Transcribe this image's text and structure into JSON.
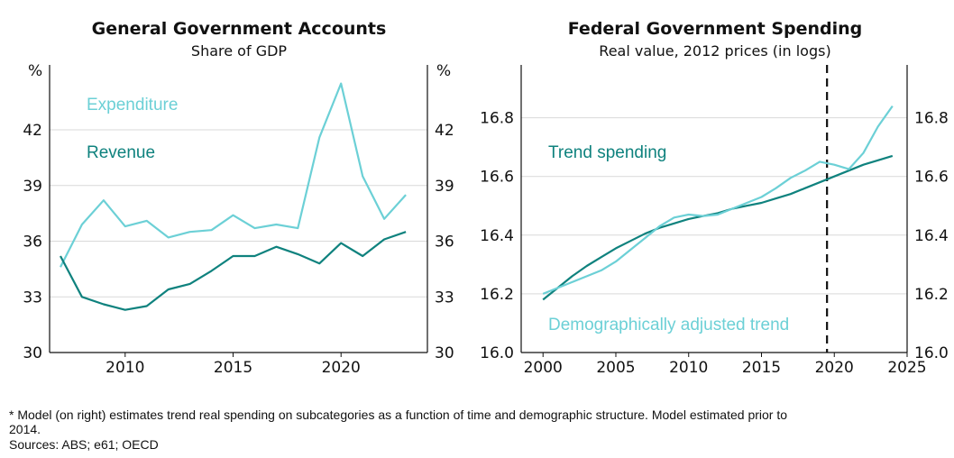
{
  "colors": {
    "expenditure": "#6cd0d6",
    "revenue": "#0f827e",
    "trend": "#0f827e",
    "demo": "#6cd0d6",
    "grid": "#d9d9d9",
    "axis": "#111111"
  },
  "footnote": {
    "line1": "* Model (on right) estimates trend real spending on subcategories as a function of time and demographic structure. Model estimated prior to",
    "line2": "2014.",
    "sources": "Sources: ABS; e61; OECD"
  },
  "chart_data": [
    {
      "type": "line",
      "title": "General Government Accounts",
      "subtitle": "Share of GDP",
      "unit_label": "%",
      "ylim": [
        30,
        45.5
      ],
      "yticks": [
        30,
        33,
        36,
        39,
        42
      ],
      "xlim": [
        2006.5,
        2024
      ],
      "xticks": [
        2010,
        2015,
        2020
      ],
      "grid": true,
      "annotations": [
        "Expenditure",
        "Revenue"
      ],
      "x": [
        2007,
        2008,
        2009,
        2010,
        2011,
        2012,
        2013,
        2014,
        2015,
        2016,
        2017,
        2018,
        2019,
        2020,
        2021,
        2022,
        2023
      ],
      "series": [
        {
          "name": "Expenditure",
          "values": [
            34.6,
            36.9,
            38.2,
            36.8,
            37.1,
            36.2,
            36.5,
            36.6,
            37.4,
            36.7,
            36.9,
            36.7,
            41.6,
            44.5,
            39.5,
            37.2,
            38.5
          ]
        },
        {
          "name": "Revenue",
          "values": [
            35.2,
            33.0,
            32.6,
            32.3,
            32.5,
            33.4,
            33.7,
            34.4,
            35.2,
            35.2,
            35.7,
            35.3,
            34.8,
            35.9,
            35.2,
            36.1,
            36.5
          ]
        }
      ]
    },
    {
      "type": "line",
      "title": "Federal Government Spending",
      "subtitle": "Real value, 2012 prices (in logs)",
      "ylim": [
        16.0,
        16.98
      ],
      "yticks": [
        16.0,
        16.2,
        16.4,
        16.6,
        16.8
      ],
      "xlim": [
        1998.5,
        2025
      ],
      "xticks": [
        2000,
        2005,
        2010,
        2015,
        2020,
        2025
      ],
      "grid": true,
      "vline_x": 2019.5,
      "annotations": [
        "Trend spending",
        "Demographically adjusted trend"
      ],
      "x": [
        2000,
        2001,
        2002,
        2003,
        2004,
        2005,
        2006,
        2007,
        2008,
        2009,
        2010,
        2011,
        2012,
        2013,
        2014,
        2015,
        2016,
        2017,
        2018,
        2019,
        2020,
        2021,
        2022,
        2023,
        2024
      ],
      "series": [
        {
          "name": "Trend spending",
          "values": [
            16.18,
            16.22,
            16.26,
            16.295,
            16.325,
            16.355,
            16.38,
            16.405,
            16.425,
            16.44,
            16.455,
            16.465,
            16.475,
            16.49,
            16.5,
            16.51,
            16.525,
            16.54,
            16.56,
            16.58,
            16.6,
            16.62,
            16.64,
            16.655,
            16.67
          ]
        },
        {
          "name": "Demographically adjusted trend",
          "values": [
            16.2,
            16.22,
            16.24,
            16.26,
            16.28,
            16.31,
            16.35,
            16.39,
            16.43,
            16.46,
            16.47,
            16.465,
            16.47,
            16.49,
            16.51,
            16.53,
            16.56,
            16.595,
            16.62,
            16.65,
            16.64,
            16.625,
            16.68,
            16.77,
            16.84
          ]
        }
      ]
    }
  ]
}
